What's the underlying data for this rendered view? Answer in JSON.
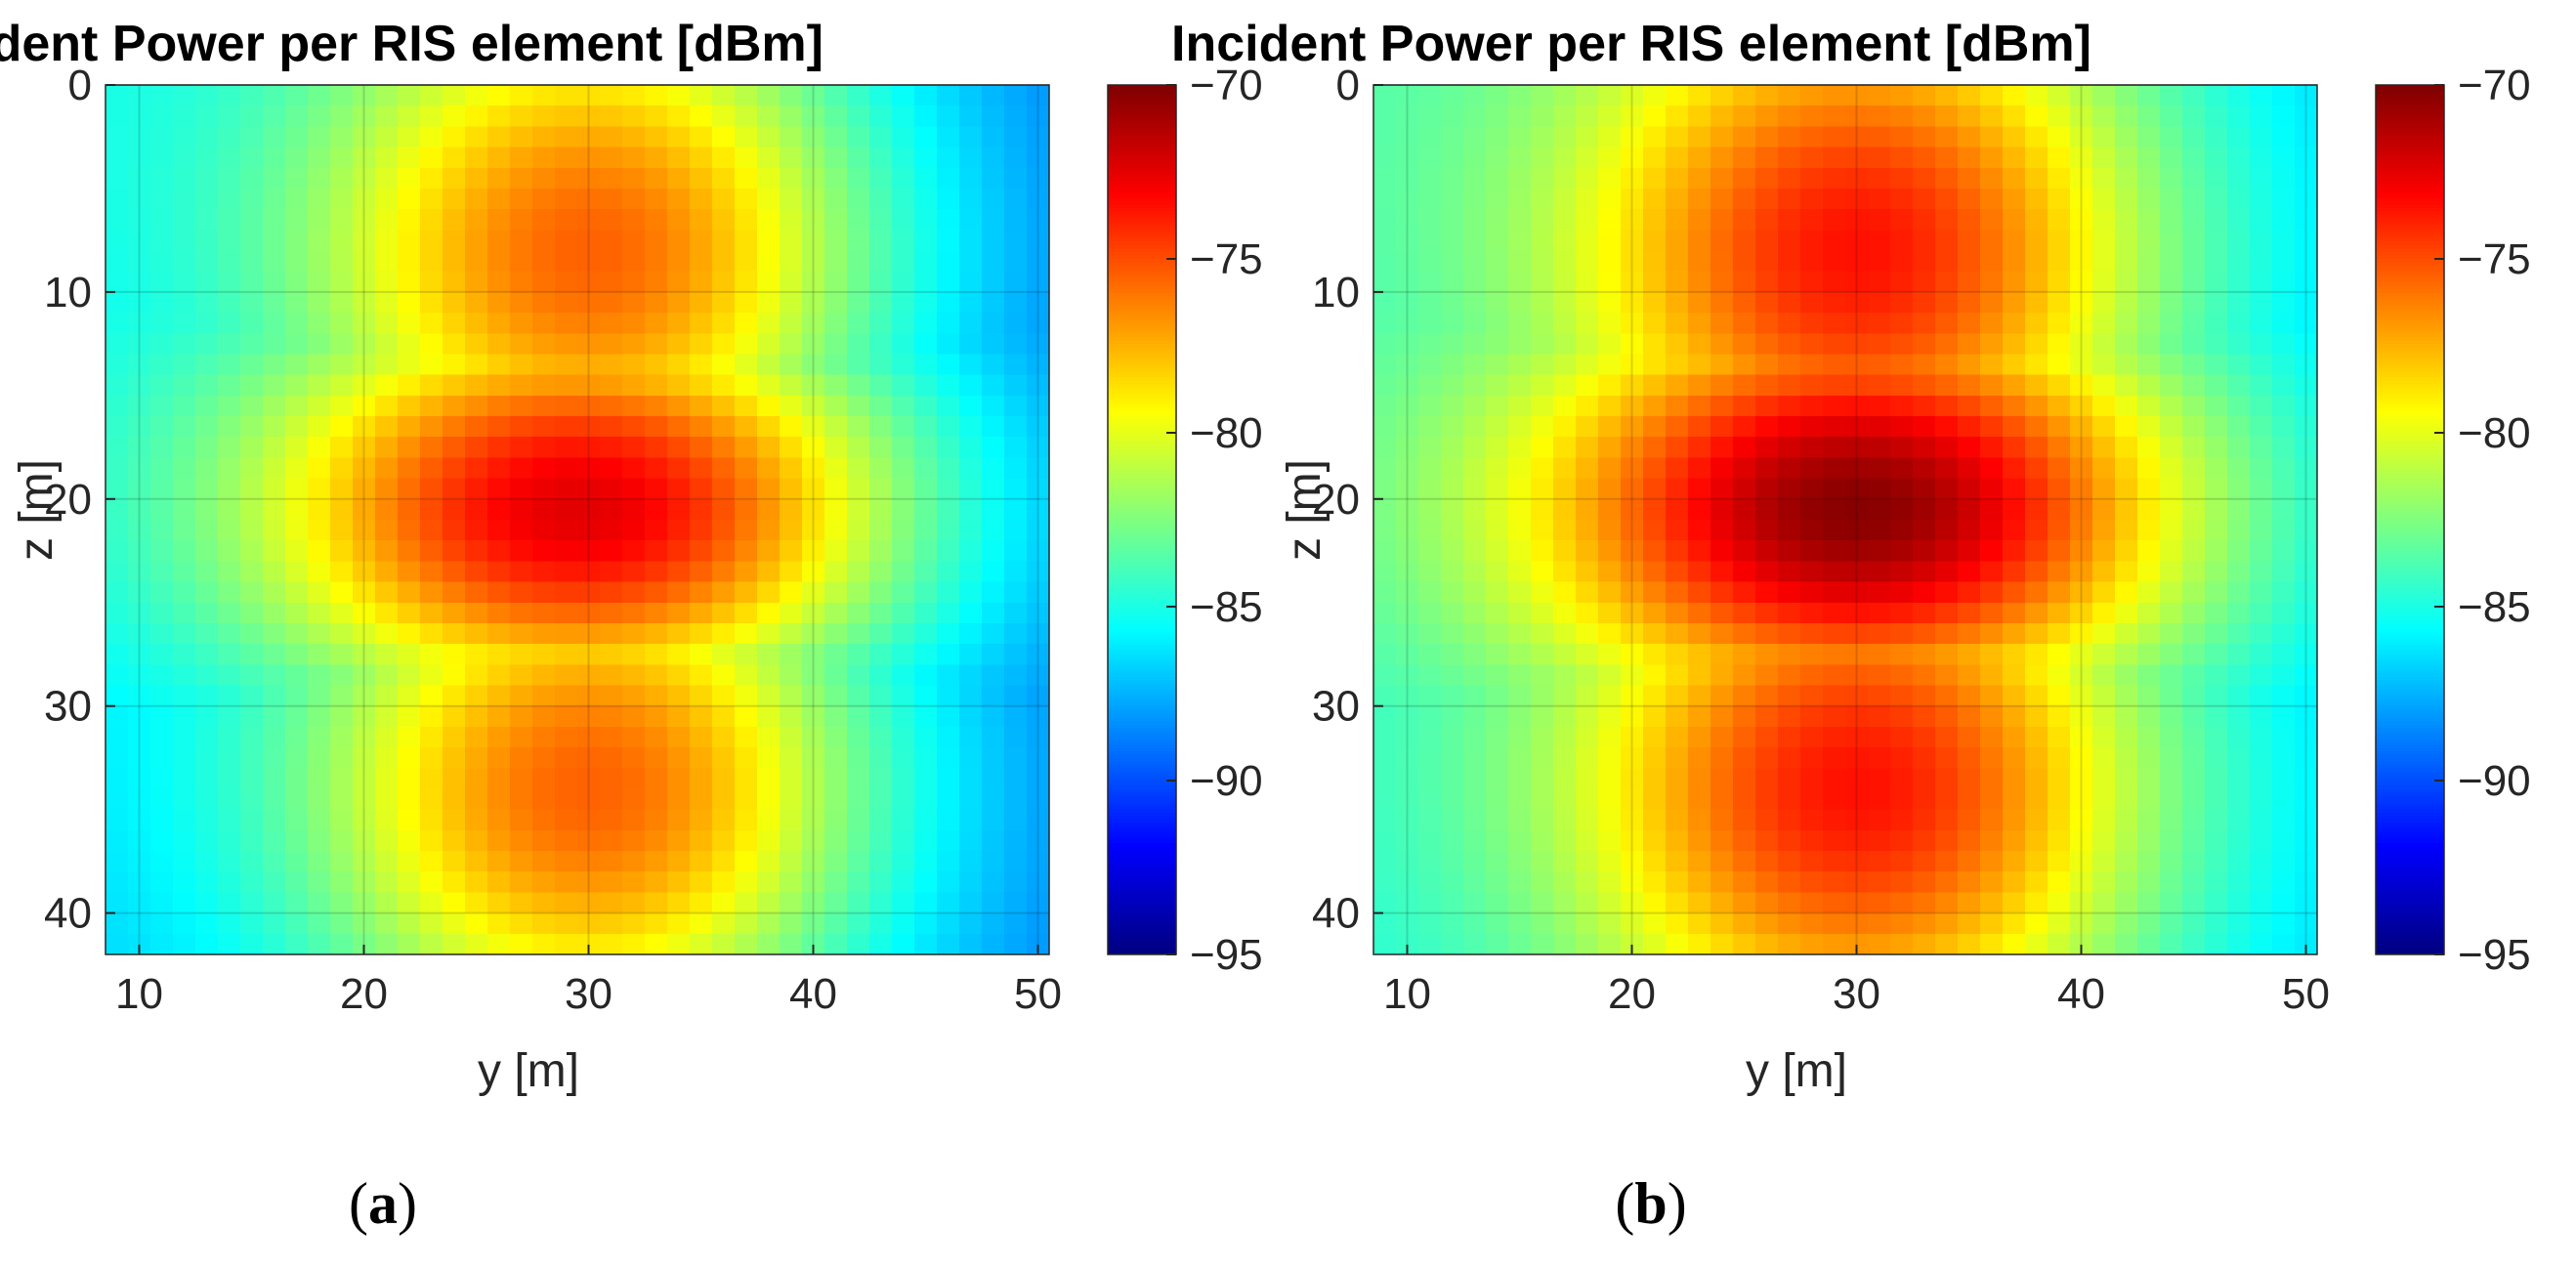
{
  "chart_data": [
    {
      "type": "heatmap",
      "panel_label": "a",
      "title": "Incident Power per RIS element [dBm]",
      "xlabel": "y [m]",
      "ylabel": "z [m]",
      "xlim": [
        8.5,
        50.5
      ],
      "ylim": [
        42,
        0
      ],
      "y_axis_reversed": true,
      "grid": true,
      "xticks": [
        10,
        20,
        30,
        40,
        50
      ],
      "yticks": [
        0,
        10,
        20,
        30,
        40
      ],
      "colormap": "jet",
      "colorbar": {
        "range": [
          -95,
          -70
        ],
        "ticks": [
          -70,
          -75,
          -80,
          -85,
          -90,
          -95
        ]
      },
      "cell_step": 1,
      "field_model": {
        "y_range": [
          8.5,
          50.5
        ],
        "z_range": [
          0,
          42
        ],
        "peak_dBm": -72.4,
        "peak_location": {
          "y": 29.5,
          "z": 20.5
        },
        "upper_lobe_center": {
          "y": 30,
          "z": 8
        },
        "lower_lobe_center": {
          "y": 30,
          "z": 34
        },
        "lobe_level_dBm": -75.5,
        "corner_level_dBm": {
          "top_left": -85.5,
          "top_right": -89,
          "bottom_left": -87,
          "bottom_right": -89
        }
      }
    },
    {
      "type": "heatmap",
      "panel_label": "b",
      "title": "Incident Power per RIS element [dBm]",
      "xlabel": "y [m]",
      "ylabel": "z [m]",
      "xlim": [
        8.5,
        50.5
      ],
      "ylim": [
        42,
        0
      ],
      "y_axis_reversed": true,
      "grid": true,
      "xticks": [
        10,
        20,
        30,
        40,
        50
      ],
      "yticks": [
        0,
        10,
        20,
        30,
        40
      ],
      "colormap": "jet",
      "colorbar": {
        "range": [
          -95,
          -70
        ],
        "ticks": [
          -70,
          -75,
          -80,
          -85,
          -90,
          -95
        ]
      },
      "cell_step": 1,
      "field_model": {
        "y_range": [
          8.5,
          50.5
        ],
        "z_range": [
          0,
          42
        ],
        "peak_dBm": -70.2,
        "peak_location": {
          "y": 30,
          "z": 20.5
        },
        "upper_lobe_center": {
          "y": 30,
          "z": 8
        },
        "lower_lobe_center": {
          "y": 30,
          "z": 34
        },
        "lobe_level_dBm": -73.5,
        "corner_level_dBm": {
          "top_left": -84,
          "top_right": -87,
          "bottom_left": -85,
          "bottom_right": -87
        }
      }
    }
  ]
}
